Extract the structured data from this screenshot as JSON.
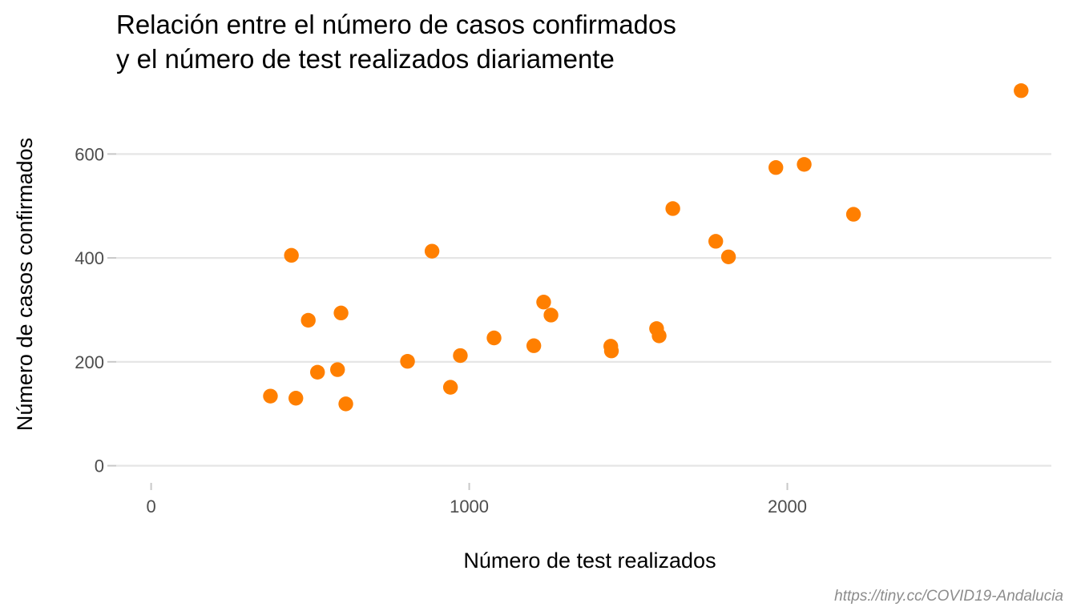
{
  "chart_data": {
    "type": "scatter",
    "title_lines": [
      "Relación entre el número de casos confirmados",
      "y el número de test realizados diariamente"
    ],
    "xlabel": "Número de test realizados",
    "ylabel": "Número de casos confirmados",
    "caption": "https://tiny.cc/COVID19-Andalucia",
    "xlim": [
      -130,
      2830
    ],
    "ylim": [
      -70,
      730
    ],
    "x_ticks": [
      0,
      1000,
      2000
    ],
    "x_tick_labels": [
      "0",
      "1000",
      "2000"
    ],
    "y_ticks": [
      0,
      200,
      400,
      600
    ],
    "y_tick_labels": [
      "0",
      "200",
      "400",
      "600"
    ],
    "grid": "horizontal",
    "point_color": "#ff7f00",
    "points": [
      {
        "x": 375,
        "y": 134
      },
      {
        "x": 441,
        "y": 405
      },
      {
        "x": 455,
        "y": 130
      },
      {
        "x": 494,
        "y": 280
      },
      {
        "x": 523,
        "y": 180
      },
      {
        "x": 586,
        "y": 185
      },
      {
        "x": 597,
        "y": 294
      },
      {
        "x": 612,
        "y": 119
      },
      {
        "x": 806,
        "y": 201
      },
      {
        "x": 883,
        "y": 413
      },
      {
        "x": 941,
        "y": 151
      },
      {
        "x": 972,
        "y": 212
      },
      {
        "x": 1078,
        "y": 246
      },
      {
        "x": 1203,
        "y": 231
      },
      {
        "x": 1234,
        "y": 315
      },
      {
        "x": 1257,
        "y": 290
      },
      {
        "x": 1445,
        "y": 230
      },
      {
        "x": 1447,
        "y": 221
      },
      {
        "x": 1589,
        "y": 264
      },
      {
        "x": 1597,
        "y": 250
      },
      {
        "x": 1640,
        "y": 495
      },
      {
        "x": 1775,
        "y": 432
      },
      {
        "x": 1815,
        "y": 402
      },
      {
        "x": 1964,
        "y": 574
      },
      {
        "x": 2053,
        "y": 580
      },
      {
        "x": 2208,
        "y": 484
      },
      {
        "x": 2735,
        "y": 722
      }
    ]
  }
}
